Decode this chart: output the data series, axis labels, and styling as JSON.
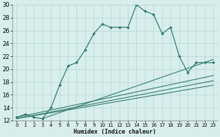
{
  "xlabel": "Humidex (Indice chaleur)",
  "xlim": [
    -0.5,
    23.5
  ],
  "ylim": [
    12,
    30
  ],
  "xticks": [
    0,
    1,
    2,
    3,
    4,
    5,
    6,
    7,
    8,
    9,
    10,
    11,
    12,
    13,
    14,
    15,
    16,
    17,
    18,
    19,
    20,
    21,
    22,
    23
  ],
  "yticks": [
    12,
    14,
    16,
    18,
    20,
    22,
    24,
    26,
    28,
    30
  ],
  "bg_color": "#d8eeec",
  "grid_color": "#b8d8d4",
  "line_color": "#2d7a6a",
  "main_line": {
    "x": [
      0,
      1,
      2,
      3,
      4,
      5,
      6,
      7,
      8,
      9,
      10,
      11,
      12,
      13,
      14,
      15,
      16,
      17,
      18,
      19,
      20,
      21,
      22,
      23
    ],
    "y": [
      12.5,
      13,
      12.5,
      12.3,
      14,
      17.5,
      20.5,
      21,
      23,
      25.5,
      27,
      26.5,
      26.5,
      26.5,
      30,
      29,
      28.5,
      25.5,
      26.5,
      22,
      19.5,
      21,
      21,
      21
    ]
  },
  "linear_lines": [
    {
      "x0": 0,
      "y0": 12.5,
      "x1": 23,
      "y1": 19.0
    },
    {
      "x0": 0,
      "y0": 12.3,
      "x1": 23,
      "y1": 18.2
    },
    {
      "x0": 0,
      "y0": 12.3,
      "x1": 23,
      "y1": 17.5
    },
    {
      "x0": 3,
      "y0": 12.3,
      "x1": 23,
      "y1": 21.5
    }
  ]
}
